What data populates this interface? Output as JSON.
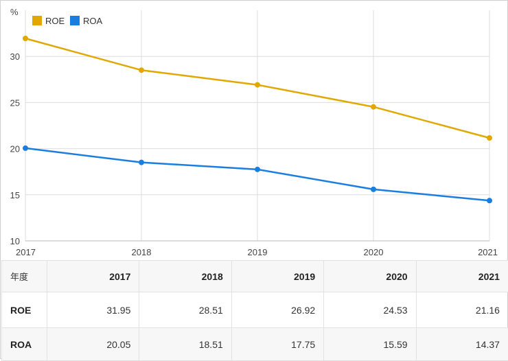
{
  "chart_data": {
    "type": "line",
    "title": "",
    "xlabel": "",
    "ylabel": "%",
    "categories": [
      "2017",
      "2018",
      "2019",
      "2020",
      "2021"
    ],
    "ylim": [
      10,
      35
    ],
    "yticks": [
      10,
      15,
      20,
      25,
      30
    ],
    "grid": true,
    "legend": "top-left",
    "series": [
      {
        "name": "ROE",
        "color": "#e0a800",
        "values": [
          31.95,
          28.51,
          26.92,
          24.53,
          21.16
        ]
      },
      {
        "name": "ROA",
        "color": "#1a7ee0",
        "values": [
          20.05,
          18.51,
          17.75,
          15.59,
          14.37
        ]
      }
    ]
  },
  "table": {
    "header_label": "年度",
    "columns": [
      "2017",
      "2018",
      "2019",
      "2020",
      "2021"
    ],
    "rows": [
      {
        "label": "ROE",
        "values": [
          "31.95",
          "28.51",
          "26.92",
          "24.53",
          "21.16"
        ]
      },
      {
        "label": "ROA",
        "values": [
          "20.05",
          "18.51",
          "17.75",
          "15.59",
          "14.37"
        ]
      }
    ]
  }
}
